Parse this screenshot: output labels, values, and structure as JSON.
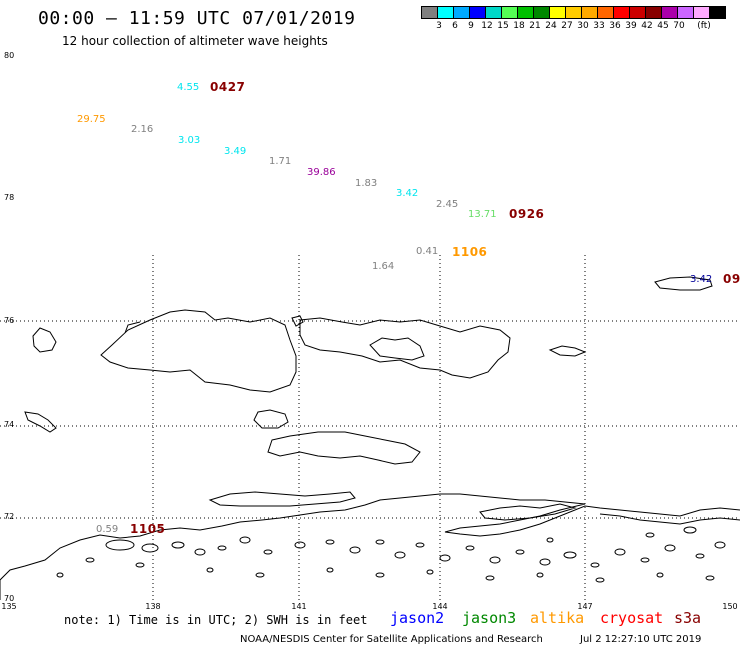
{
  "title": "00:00 – 11:59 UTC 07/01/2019",
  "subtitle": "12 hour collection of altimeter wave heights",
  "scale": {
    "unit": "(ft)",
    "colors": [
      "#808080",
      "#00ffff",
      "#00aaff",
      "#0000ff",
      "#00d8c8",
      "#55ff55",
      "#00c000",
      "#008800",
      "#ffff00",
      "#ffcc00",
      "#ffaa00",
      "#ff6600",
      "#ff0000",
      "#cc0000",
      "#880000",
      "#aa00aa",
      "#cc66ff",
      "#ffaaff",
      "#000000"
    ],
    "labels": [
      "3",
      "6",
      "9",
      "12",
      "15",
      "18",
      "21",
      "24",
      "27",
      "30",
      "33",
      "36",
      "39",
      "42",
      "45",
      "70"
    ]
  },
  "axes": {
    "lat_labels": [
      "80",
      "78",
      "76",
      "74",
      "72",
      "70"
    ],
    "lon_labels": [
      "135",
      "138",
      "141",
      "144",
      "147",
      "150"
    ]
  },
  "wave_heights": [
    {
      "text": "4.55",
      "color": "#00e5ee"
    },
    {
      "text": "29.75",
      "color": "#ff9900"
    },
    {
      "text": "2.16",
      "color": "#808080"
    },
    {
      "text": "3.03",
      "color": "#00e5ee"
    },
    {
      "text": "3.49",
      "color": "#00e5ee"
    },
    {
      "text": "1.71",
      "color": "#808080"
    },
    {
      "text": "39.86",
      "color": "#990099"
    },
    {
      "text": "1.83",
      "color": "#808080"
    },
    {
      "text": "3.42",
      "color": "#00e5ee"
    },
    {
      "text": "2.45",
      "color": "#808080"
    },
    {
      "text": "13.71",
      "color": "#66dd66"
    },
    {
      "text": "0.41",
      "color": "#808080"
    },
    {
      "text": "1.64",
      "color": "#808080"
    },
    {
      "text": "3.42",
      "color": "#000099"
    },
    {
      "text": "0.59",
      "color": "#808080"
    }
  ],
  "time_labels": [
    {
      "text": "0427",
      "color": "#880000"
    },
    {
      "text": "0926",
      "color": "#880000"
    },
    {
      "text": "1106",
      "color": "#ff9900"
    },
    {
      "text": "09",
      "color": "#880000"
    },
    {
      "text": "1105",
      "color": "#880000"
    }
  ],
  "note": "note: 1) Time is in UTC; 2) SWH is in feet",
  "legend": [
    {
      "text": "jason2",
      "color": "#0000ff"
    },
    {
      "text": "jason3",
      "color": "#008800"
    },
    {
      "text": "altika",
      "color": "#ff9900"
    },
    {
      "text": "cryosat",
      "color": "#ff0000"
    },
    {
      "text": "s3a",
      "color": "#880000"
    }
  ],
  "footer": "NOAA/NESDIS Center for Satellite Applications and Research",
  "footer_timestamp": "Jul  2 12:27:10 UTC 2019"
}
